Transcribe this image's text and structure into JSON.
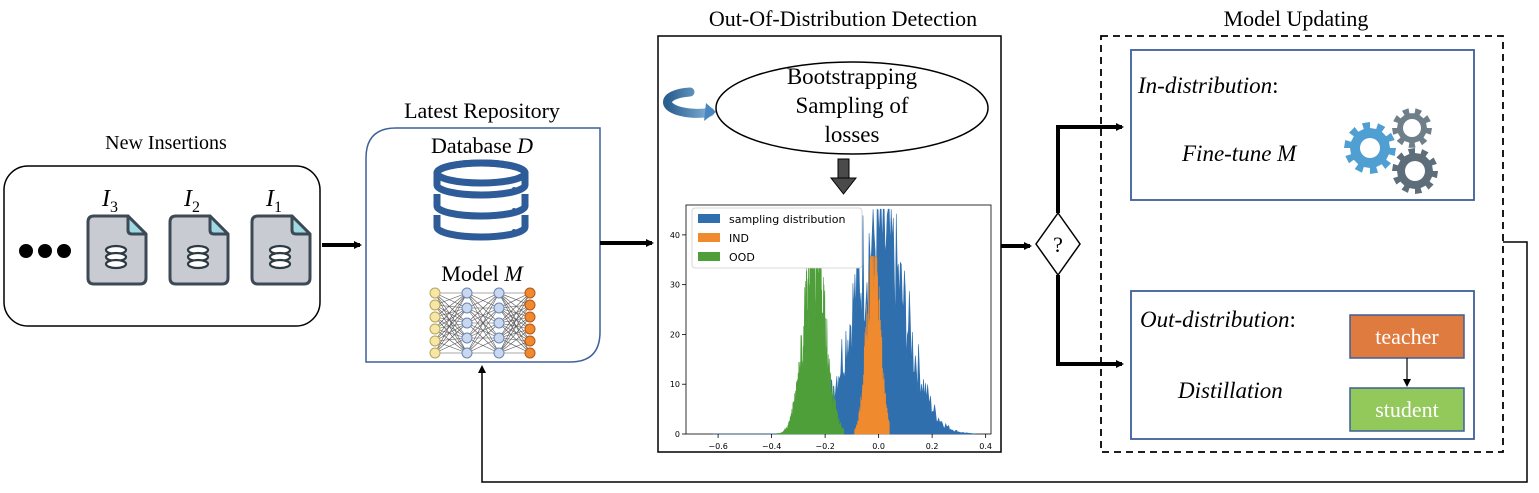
{
  "colors": {
    "blue_box": "#3e5f9a",
    "hist_blue": "#2f6fae",
    "hist_orange": "#f08a2e",
    "hist_green": "#4e9e3a",
    "gear_blue": "#4f9fd3",
    "gear_gray": "#5d6e7a",
    "teacher": "#e07b3f",
    "student": "#93c85a",
    "db_blue": "#2e5c99",
    "file_fill": "#c8ccd2",
    "file_corner": "#9fd9e4"
  },
  "new_insertions": {
    "title": "New Insertions",
    "ellipsis_icon": "three-dots",
    "files": [
      {
        "symbol": "I",
        "subscript": "3",
        "icon": "file-database-icon"
      },
      {
        "symbol": "I",
        "subscript": "2",
        "icon": "file-database-icon"
      },
      {
        "symbol": "I",
        "subscript": "1",
        "icon": "file-database-icon"
      }
    ]
  },
  "repository": {
    "title": "Latest Repository",
    "database_label": "Database",
    "database_symbol": "D",
    "model_label": "Model",
    "model_symbol": "M",
    "database_icon": "database-icon",
    "network_icon": "neural-network-icon"
  },
  "ood": {
    "title": "Out-Of-Distribution Detection",
    "bootstrap_lines": [
      "Bootstrapping",
      "Sampling of",
      "losses"
    ],
    "loop_icon": "circular-arrow-icon",
    "down_arrow_icon": "down-arrow-icon"
  },
  "chart_data": {
    "type": "histogram",
    "legend": [
      "sampling distribution",
      "IND",
      "OOD"
    ],
    "legend_position": "top-left",
    "xticks": [
      "−0.6",
      "−0.4",
      "−0.2",
      "0.0",
      "0.2",
      "0.4"
    ],
    "yticks": [
      "0",
      "10",
      "20",
      "30",
      "40"
    ],
    "xlim": [
      -0.72,
      0.42
    ],
    "ylim": [
      0,
      46
    ],
    "series": [
      {
        "name": "sampling distribution",
        "mean": 0.0,
        "std": 0.1,
        "peak": 43,
        "range": [
          -0.62,
          0.36
        ]
      },
      {
        "name": "IND",
        "mean": -0.02,
        "std": 0.025,
        "peak": 34,
        "range": [
          -0.09,
          0.04
        ]
      },
      {
        "name": "OOD",
        "mean": -0.24,
        "std": 0.04,
        "peak": 36,
        "range": [
          -0.38,
          -0.13
        ]
      }
    ]
  },
  "decision": {
    "symbol": "?"
  },
  "model_updating": {
    "title": "Model Updating",
    "in_distribution": {
      "label": "In-distribution",
      "colon": ":",
      "action": "Fine-tune",
      "action_symbol": "M",
      "icon": "gears-icon"
    },
    "out_distribution": {
      "label": "Out-distribution",
      "colon": ":",
      "action": "Distillation",
      "teacher": "teacher",
      "student": "student"
    }
  }
}
